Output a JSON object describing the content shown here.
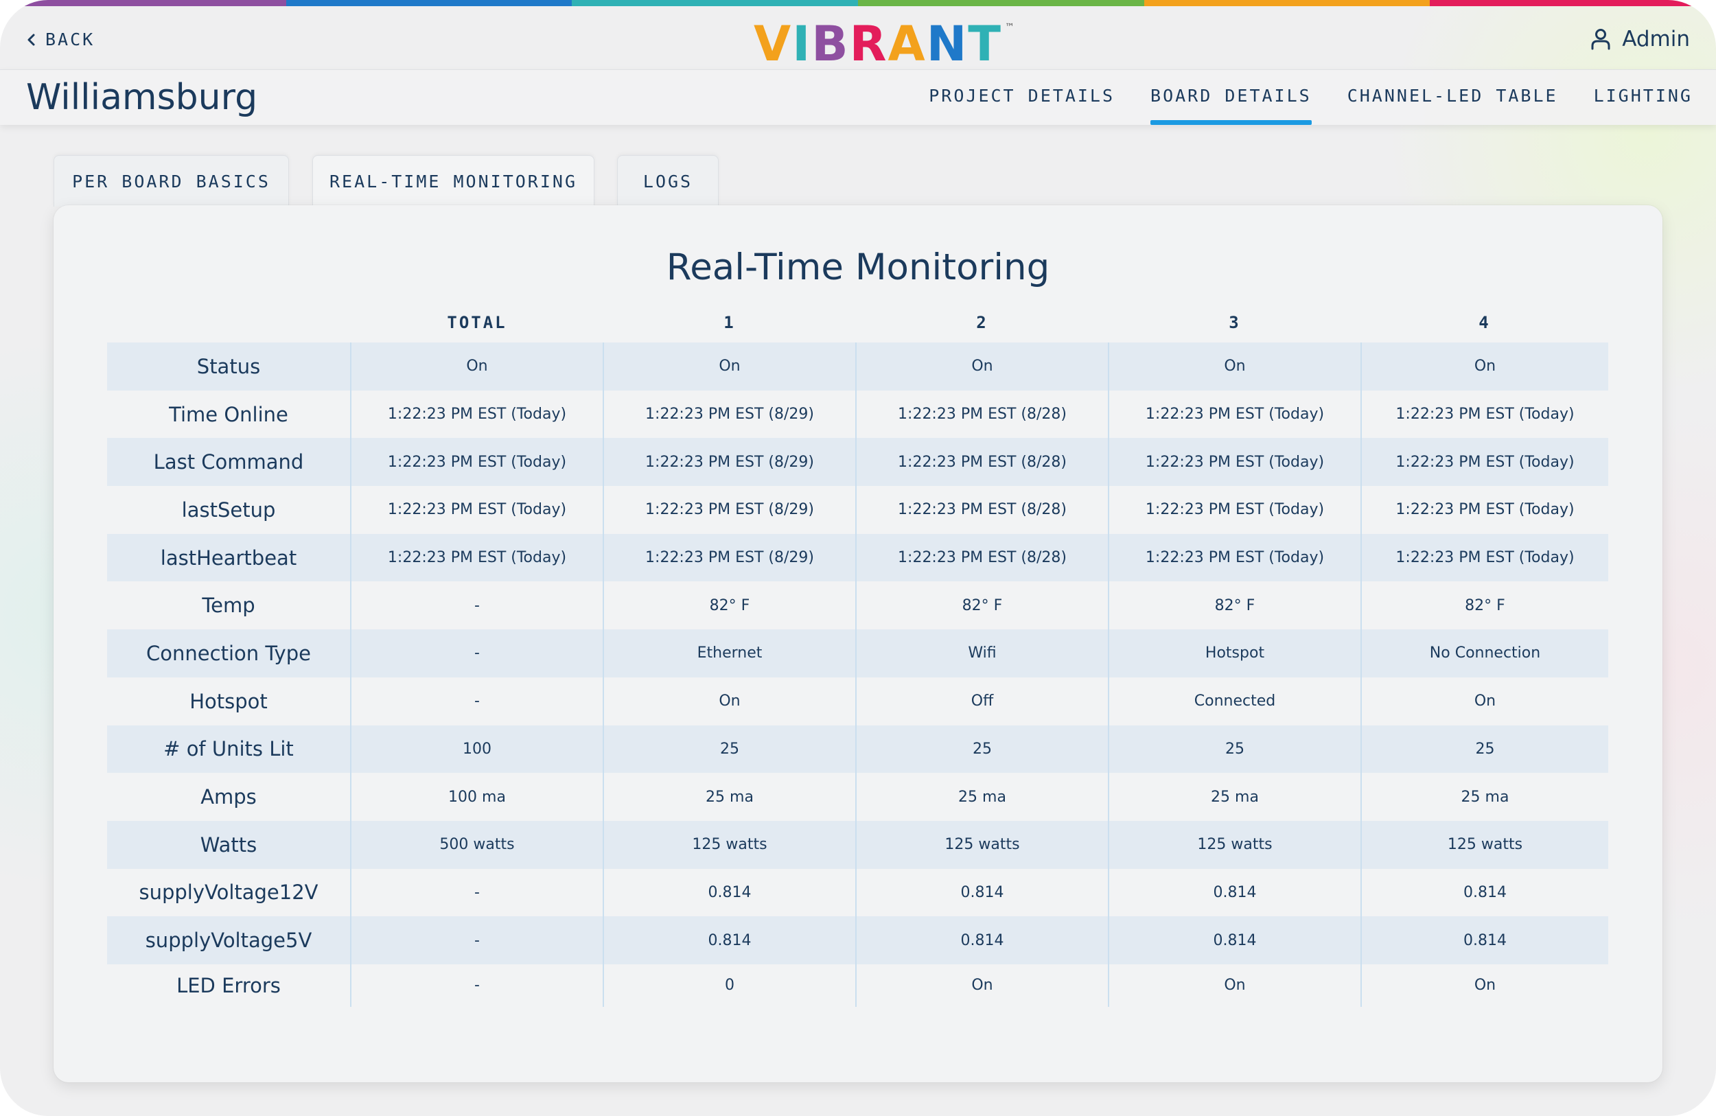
{
  "colors": {
    "rainbow": [
      "#8e4fa0",
      "#1f79c9",
      "#2fb1b5",
      "#6ab547",
      "#f3a11c",
      "#e31d5b"
    ],
    "accent": "#1b9ae2",
    "text": "#1b3a5c",
    "status_good": "#64a33d",
    "status_bad": "#e0245e"
  },
  "header": {
    "back_label": "BACK",
    "logo_letters": [
      {
        "ch": "V",
        "color": "#f3a11c"
      },
      {
        "ch": "I",
        "color": "#2fb1b5"
      },
      {
        "ch": "B",
        "color": "#8e4fa0"
      },
      {
        "ch": "R",
        "color": "#e31d5b"
      },
      {
        "ch": "A",
        "color": "#f3a11c"
      },
      {
        "ch": "N",
        "color": "#1f79c9"
      },
      {
        "ch": "T",
        "color": "#2fb1b5"
      }
    ],
    "logo_tm": "™",
    "user_label": "Admin"
  },
  "navbar": {
    "project_name": "Williamsburg",
    "tabs": [
      {
        "label": "PROJECT DETAILS",
        "active": false
      },
      {
        "label": "BOARD DETAILS",
        "active": true
      },
      {
        "label": "CHANNEL-LED TABLE",
        "active": false
      },
      {
        "label": "LIGHTING",
        "active": false
      }
    ]
  },
  "subtabs": [
    {
      "label": "PER BOARD BASICS",
      "active": false
    },
    {
      "label": "REAL-TIME MONITORING",
      "active": true
    },
    {
      "label": "LOGS",
      "active": false
    }
  ],
  "monitoring": {
    "title": "Real-Time Monitoring",
    "columns": [
      "TOTAL",
      "1",
      "2",
      "3",
      "4"
    ],
    "rows": [
      {
        "label": "Status",
        "values": [
          "On",
          "On",
          "On",
          "On",
          "On"
        ],
        "tones": [
          "good",
          "good",
          "good",
          "good",
          "good"
        ]
      },
      {
        "label": "Time Online",
        "values": [
          "1:22:23 PM EST (Today)",
          "1:22:23 PM EST (8/29)",
          "1:22:23 PM EST (8/28)",
          "1:22:23 PM EST (Today)",
          "1:22:23 PM EST (Today)"
        ]
      },
      {
        "label": "Last Command",
        "values": [
          "1:22:23 PM EST (Today)",
          "1:22:23 PM EST (8/29)",
          "1:22:23 PM EST (8/28)",
          "1:22:23 PM EST (Today)",
          "1:22:23 PM EST (Today)"
        ]
      },
      {
        "label": "lastSetup",
        "values": [
          "1:22:23 PM EST (Today)",
          "1:22:23 PM EST (8/29)",
          "1:22:23 PM EST (8/28)",
          "1:22:23 PM EST (Today)",
          "1:22:23 PM EST (Today)"
        ]
      },
      {
        "label": "lastHeartbeat",
        "values": [
          "1:22:23 PM EST (Today)",
          "1:22:23 PM EST (8/29)",
          "1:22:23 PM EST (8/28)",
          "1:22:23 PM EST (Today)",
          "1:22:23 PM EST (Today)"
        ]
      },
      {
        "label": "Temp",
        "values": [
          "-",
          "82° F",
          "82° F",
          "82° F",
          "82° F"
        ]
      },
      {
        "label": "Connection Type",
        "values": [
          "-",
          "Ethernet",
          "Wifi",
          "Hotspot",
          "No Connection"
        ],
        "tones": [
          "",
          "good",
          "good",
          "good",
          "bad"
        ]
      },
      {
        "label": "Hotspot",
        "values": [
          "-",
          "On",
          "Off",
          "Connected",
          "On"
        ],
        "tones": [
          "",
          "good",
          "bad",
          "good",
          "good"
        ]
      },
      {
        "label": "# of Units Lit",
        "values": [
          "100",
          "25",
          "25",
          "25",
          "25"
        ]
      },
      {
        "label": "Amps",
        "values": [
          "100 ma",
          "25 ma",
          "25 ma",
          "25 ma",
          "25 ma"
        ]
      },
      {
        "label": "Watts",
        "values": [
          "500 watts",
          "125 watts",
          "125 watts",
          "125 watts",
          "125 watts"
        ]
      },
      {
        "label": "supplyVoltage12V",
        "values": [
          "-",
          "0.814",
          "0.814",
          "0.814",
          "0.814"
        ]
      },
      {
        "label": "supplyVoltage5V",
        "values": [
          "-",
          "0.814",
          "0.814",
          "0.814",
          "0.814"
        ]
      },
      {
        "label": "LED Errors",
        "values": [
          "-",
          "0",
          "On",
          "On",
          "On"
        ]
      }
    ]
  }
}
